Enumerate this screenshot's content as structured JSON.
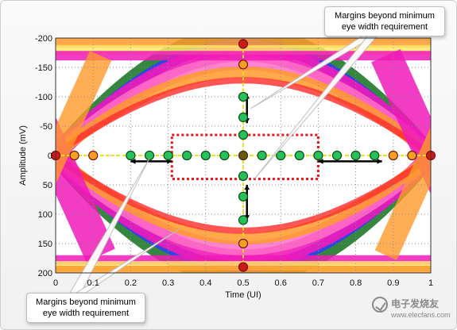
{
  "chart_data": {
    "type": "eye-diagram",
    "title": "",
    "xlabel": "Time (UI)",
    "ylabel": "Amplitude (mV)",
    "xlim": [
      0,
      1
    ],
    "ylim": [
      -200,
      200
    ],
    "y_inverted": true,
    "x_ticks": [
      "0",
      "0.1",
      "0.2",
      "0.3",
      "0.4",
      "0.5",
      "0.6",
      "0.7",
      "0.8",
      "0.9",
      "1"
    ],
    "x_tick_values": [
      0,
      0.1,
      0.2,
      0.3,
      0.4,
      0.5,
      0.6,
      0.7,
      0.8,
      0.9,
      1
    ],
    "y_ticks": [
      "-200",
      "-150",
      "-100",
      "-50",
      "0",
      "50",
      "100",
      "150",
      "200"
    ],
    "y_tick_values": [
      -200,
      -150,
      -100,
      -50,
      0,
      50,
      100,
      150,
      200
    ],
    "grid": true,
    "eye_mask": {
      "x": [
        0.31,
        0.7
      ],
      "y": [
        -35,
        40
      ]
    },
    "horizontal_scan_points": [
      {
        "x": 0.0,
        "y": 0,
        "status": "fail"
      },
      {
        "x": 0.05,
        "y": 0,
        "status": "marginal"
      },
      {
        "x": 0.1,
        "y": 0,
        "status": "marginal"
      },
      {
        "x": 0.2,
        "y": 0,
        "status": "pass"
      },
      {
        "x": 0.25,
        "y": 0,
        "status": "pass"
      },
      {
        "x": 0.3,
        "y": 0,
        "status": "pass"
      },
      {
        "x": 0.35,
        "y": 0,
        "status": "pass"
      },
      {
        "x": 0.4,
        "y": 0,
        "status": "pass"
      },
      {
        "x": 0.45,
        "y": 0,
        "status": "pass"
      },
      {
        "x": 0.5,
        "y": 0,
        "status": "center"
      },
      {
        "x": 0.55,
        "y": 0,
        "status": "pass"
      },
      {
        "x": 0.6,
        "y": 0,
        "status": "pass"
      },
      {
        "x": 0.65,
        "y": 0,
        "status": "pass"
      },
      {
        "x": 0.7,
        "y": 0,
        "status": "pass"
      },
      {
        "x": 0.75,
        "y": 0,
        "status": "pass"
      },
      {
        "x": 0.8,
        "y": 0,
        "status": "pass"
      },
      {
        "x": 0.85,
        "y": 0,
        "status": "pass"
      },
      {
        "x": 0.9,
        "y": 0,
        "status": "marginal"
      },
      {
        "x": 0.95,
        "y": 0,
        "status": "marginal"
      },
      {
        "x": 1.0,
        "y": 0,
        "status": "fail"
      }
    ],
    "vertical_scan_points": [
      {
        "x": 0.5,
        "y": -190,
        "status": "fail"
      },
      {
        "x": 0.5,
        "y": -155,
        "status": "marginal"
      },
      {
        "x": 0.5,
        "y": -100,
        "status": "pass"
      },
      {
        "x": 0.5,
        "y": -65,
        "status": "pass"
      },
      {
        "x": 0.5,
        "y": -35,
        "status": "pass"
      },
      {
        "x": 0.5,
        "y": 35,
        "status": "pass"
      },
      {
        "x": 0.5,
        "y": 70,
        "status": "pass"
      },
      {
        "x": 0.5,
        "y": 110,
        "status": "pass"
      },
      {
        "x": 0.5,
        "y": 150,
        "status": "marginal"
      },
      {
        "x": 0.5,
        "y": 190,
        "status": "fail"
      }
    ],
    "margin_arrows": [
      {
        "orientation": "horizontal",
        "from": 0.2,
        "to": 0.31,
        "y": 10
      },
      {
        "orientation": "horizontal",
        "from": 0.7,
        "to": 0.87,
        "y": 10
      },
      {
        "orientation": "vertical",
        "x": 0.51,
        "from": -105,
        "to": -55
      },
      {
        "orientation": "vertical",
        "x": 0.51,
        "from": 50,
        "to": 110
      }
    ],
    "colors": {
      "pass": "#26c15a",
      "marginal": "#f4a11f",
      "fail": "#cc1a16",
      "mask": "#e8151a",
      "scan_line": "#f0e500",
      "trace_magenta": "#f01ab8",
      "trace_pink": "#ff6fc8",
      "trace_orange": "#ff9a2a",
      "trace_yellow": "#ffe66a",
      "trace_blue": "#2a3cff",
      "trace_green": "#1f7a2a",
      "trace_red": "#ff2a2a"
    }
  },
  "annotations": {
    "top_callout": "Margins beyond minimum eye width requirement",
    "bottom_callout": "Margins beyond minimum eye width requirement"
  },
  "watermark": {
    "logo": "eleconfans-logo",
    "text": "电子发烧友",
    "url": "www.elecfans.com"
  }
}
